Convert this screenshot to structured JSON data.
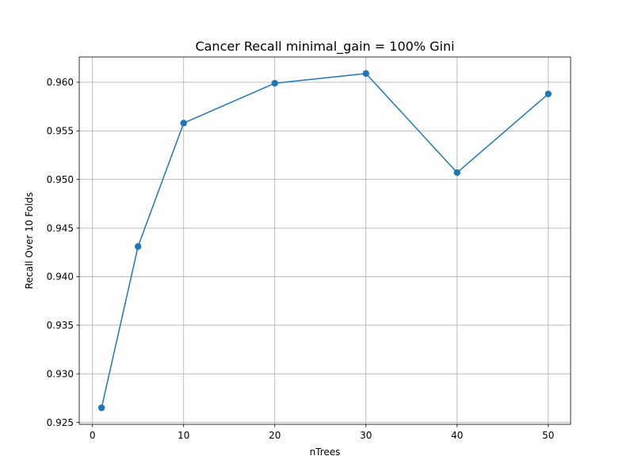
{
  "chart_data": {
    "type": "line",
    "title": "Cancer Recall minimal_gain = 100% Gini",
    "xlabel": "nTrees",
    "ylabel": "Recall Over 10 Folds",
    "x": [
      1,
      5,
      10,
      20,
      30,
      40,
      50
    ],
    "series": [
      {
        "values": [
          0.9265,
          0.9431,
          0.9558,
          0.9599,
          0.9609,
          0.9507,
          0.9588
        ],
        "color": "#1f77b4",
        "marker": "circle"
      }
    ],
    "xlim": [
      -1.45,
      52.45
    ],
    "ylim": [
      0.9248,
      0.9626
    ],
    "xticks": [
      0,
      10,
      20,
      30,
      40,
      50
    ],
    "xtick_labels": [
      "0",
      "10",
      "20",
      "30",
      "40",
      "50"
    ],
    "yticks": [
      0.925,
      0.93,
      0.935,
      0.94,
      0.945,
      0.95,
      0.955,
      0.96
    ],
    "ytick_labels": [
      "0.925",
      "0.930",
      "0.935",
      "0.940",
      "0.945",
      "0.950",
      "0.955",
      "0.960"
    ],
    "grid": true,
    "legend": "none"
  }
}
